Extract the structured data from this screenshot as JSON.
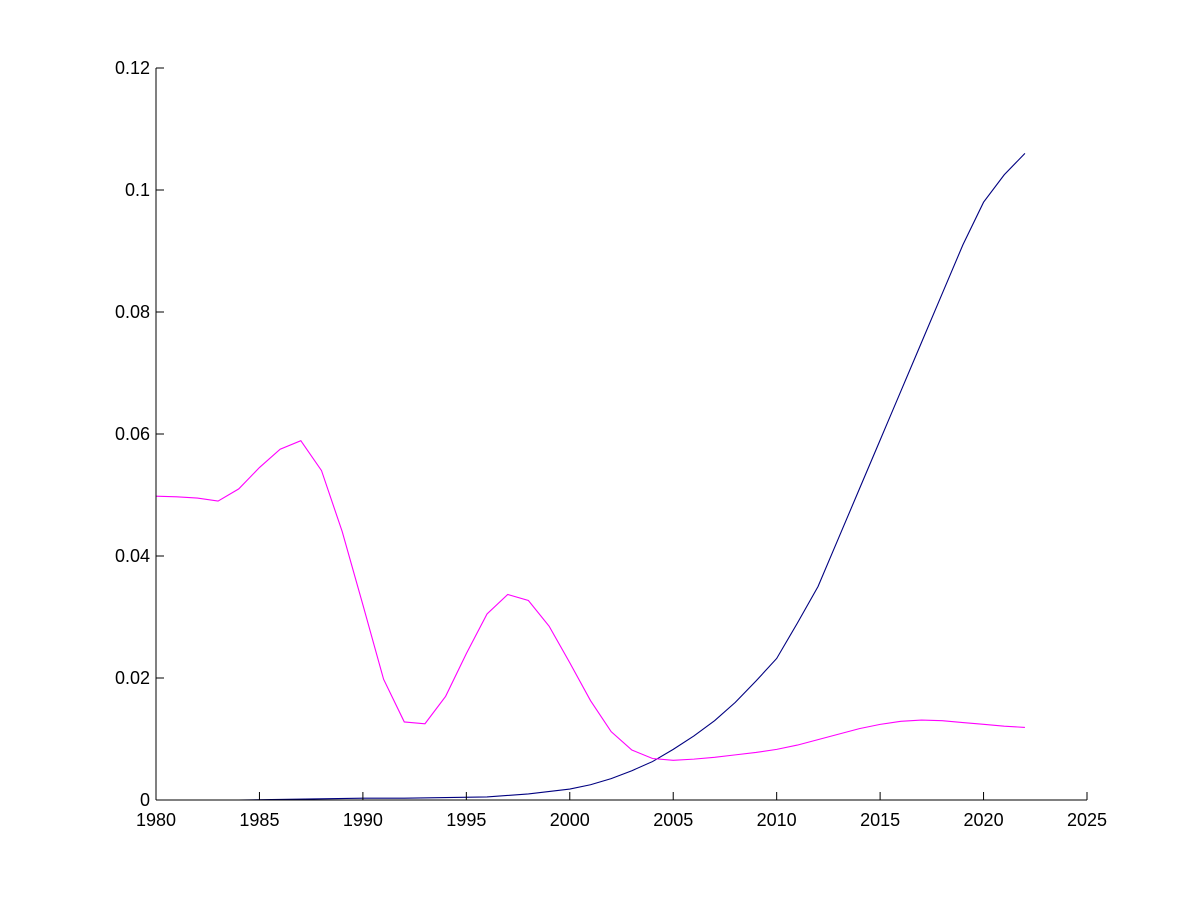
{
  "chart_data": {
    "type": "line",
    "title": "",
    "xlabel": "",
    "ylabel": "",
    "xlim": [
      1980,
      2025
    ],
    "ylim": [
      0,
      0.12
    ],
    "xticks": [
      1980,
      1985,
      1990,
      1995,
      2000,
      2005,
      2010,
      2015,
      2020,
      2025
    ],
    "xtick_labels": [
      "1980",
      "1985",
      "1990",
      "1995",
      "2000",
      "2005",
      "2010",
      "2015",
      "2020",
      "2025"
    ],
    "yticks": [
      0,
      0.02,
      0.04,
      0.06,
      0.08,
      0.1,
      0.12
    ],
    "ytick_labels": [
      "0",
      "0.02",
      "0.04",
      "0.06",
      "0.08",
      "0.1",
      "0.12"
    ],
    "grid": false,
    "legend": "none",
    "series": [
      {
        "color": "#000080",
        "x": [
          1980,
          1982,
          1984,
          1986,
          1988,
          1990,
          1992,
          1994,
          1996,
          1998,
          2000,
          2001,
          2002,
          2003,
          2004,
          2005,
          2006,
          2007,
          2008,
          2009,
          2010,
          2011,
          2012,
          2013,
          2014,
          2015,
          2016,
          2017,
          2018,
          2019,
          2020,
          2021,
          2022
        ],
        "y": [
          0.0,
          0.0,
          0.0,
          0.0001,
          0.0002,
          0.0003,
          0.0003,
          0.0004,
          0.0005,
          0.001,
          0.0018,
          0.0025,
          0.0035,
          0.0048,
          0.0063,
          0.0083,
          0.0105,
          0.013,
          0.016,
          0.0195,
          0.0232,
          0.029,
          0.035,
          0.043,
          0.051,
          0.059,
          0.067,
          0.075,
          0.083,
          0.091,
          0.098,
          0.1025,
          0.106
        ]
      },
      {
        "color": "#ff00ff",
        "x": [
          1980,
          1981,
          1982,
          1983,
          1984,
          1985,
          1986,
          1987,
          1988,
          1989,
          1990,
          1991,
          1992,
          1993,
          1994,
          1995,
          1996,
          1997,
          1998,
          1999,
          2000,
          2001,
          2002,
          2003,
          2004,
          2005,
          2006,
          2007,
          2008,
          2009,
          2010,
          2011,
          2012,
          2013,
          2014,
          2015,
          2016,
          2017,
          2018,
          2019,
          2020,
          2021,
          2022
        ],
        "y": [
          0.0498,
          0.0497,
          0.0495,
          0.049,
          0.051,
          0.0545,
          0.0575,
          0.0589,
          0.054,
          0.044,
          0.032,
          0.0198,
          0.0128,
          0.0125,
          0.017,
          0.024,
          0.0305,
          0.0337,
          0.0327,
          0.0285,
          0.0225,
          0.0163,
          0.0112,
          0.0082,
          0.0068,
          0.0065,
          0.0067,
          0.007,
          0.0074,
          0.0078,
          0.0083,
          0.009,
          0.0099,
          0.0108,
          0.0117,
          0.0124,
          0.0129,
          0.0131,
          0.013,
          0.0127,
          0.0124,
          0.0121,
          0.0119
        ]
      }
    ]
  }
}
